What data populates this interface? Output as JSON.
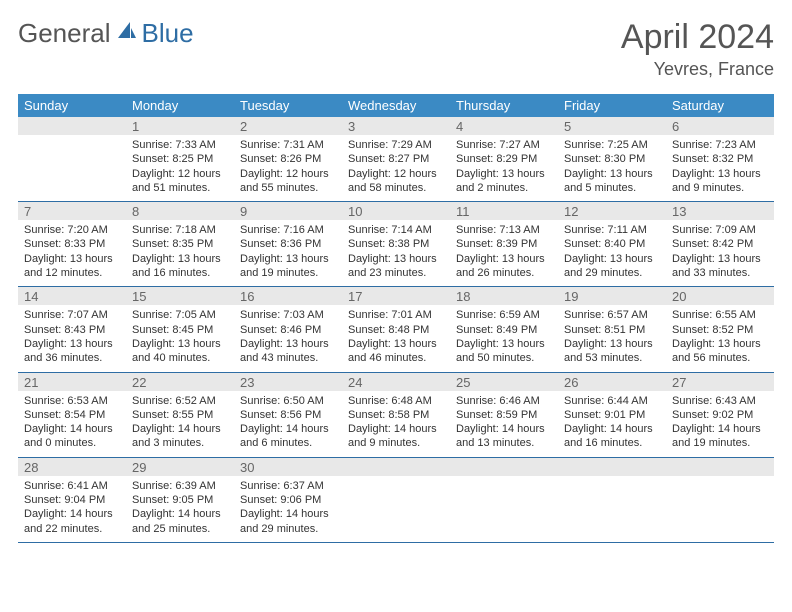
{
  "logo": {
    "word1": "General",
    "word2": "Blue"
  },
  "header": {
    "title": "April 2024",
    "location": "Yevres, France"
  },
  "colors": {
    "header_bg": "#3b8ac4",
    "header_fg": "#ffffff",
    "daynum_bg": "#e8e8e8",
    "daynum_fg": "#666666",
    "cell_border": "#2e6da4",
    "body_text": "#333333",
    "title_text": "#555555",
    "logo_gray": "#555555",
    "logo_blue": "#2e6da4"
  },
  "weekdays": [
    "Sunday",
    "Monday",
    "Tuesday",
    "Wednesday",
    "Thursday",
    "Friday",
    "Saturday"
  ],
  "weeks": [
    [
      null,
      {
        "d": "1",
        "sr": "7:33 AM",
        "ss": "8:25 PM",
        "dl": "12 hours and 51 minutes."
      },
      {
        "d": "2",
        "sr": "7:31 AM",
        "ss": "8:26 PM",
        "dl": "12 hours and 55 minutes."
      },
      {
        "d": "3",
        "sr": "7:29 AM",
        "ss": "8:27 PM",
        "dl": "12 hours and 58 minutes."
      },
      {
        "d": "4",
        "sr": "7:27 AM",
        "ss": "8:29 PM",
        "dl": "13 hours and 2 minutes."
      },
      {
        "d": "5",
        "sr": "7:25 AM",
        "ss": "8:30 PM",
        "dl": "13 hours and 5 minutes."
      },
      {
        "d": "6",
        "sr": "7:23 AM",
        "ss": "8:32 PM",
        "dl": "13 hours and 9 minutes."
      }
    ],
    [
      {
        "d": "7",
        "sr": "7:20 AM",
        "ss": "8:33 PM",
        "dl": "13 hours and 12 minutes."
      },
      {
        "d": "8",
        "sr": "7:18 AM",
        "ss": "8:35 PM",
        "dl": "13 hours and 16 minutes."
      },
      {
        "d": "9",
        "sr": "7:16 AM",
        "ss": "8:36 PM",
        "dl": "13 hours and 19 minutes."
      },
      {
        "d": "10",
        "sr": "7:14 AM",
        "ss": "8:38 PM",
        "dl": "13 hours and 23 minutes."
      },
      {
        "d": "11",
        "sr": "7:13 AM",
        "ss": "8:39 PM",
        "dl": "13 hours and 26 minutes."
      },
      {
        "d": "12",
        "sr": "7:11 AM",
        "ss": "8:40 PM",
        "dl": "13 hours and 29 minutes."
      },
      {
        "d": "13",
        "sr": "7:09 AM",
        "ss": "8:42 PM",
        "dl": "13 hours and 33 minutes."
      }
    ],
    [
      {
        "d": "14",
        "sr": "7:07 AM",
        "ss": "8:43 PM",
        "dl": "13 hours and 36 minutes."
      },
      {
        "d": "15",
        "sr": "7:05 AM",
        "ss": "8:45 PM",
        "dl": "13 hours and 40 minutes."
      },
      {
        "d": "16",
        "sr": "7:03 AM",
        "ss": "8:46 PM",
        "dl": "13 hours and 43 minutes."
      },
      {
        "d": "17",
        "sr": "7:01 AM",
        "ss": "8:48 PM",
        "dl": "13 hours and 46 minutes."
      },
      {
        "d": "18",
        "sr": "6:59 AM",
        "ss": "8:49 PM",
        "dl": "13 hours and 50 minutes."
      },
      {
        "d": "19",
        "sr": "6:57 AM",
        "ss": "8:51 PM",
        "dl": "13 hours and 53 minutes."
      },
      {
        "d": "20",
        "sr": "6:55 AM",
        "ss": "8:52 PM",
        "dl": "13 hours and 56 minutes."
      }
    ],
    [
      {
        "d": "21",
        "sr": "6:53 AM",
        "ss": "8:54 PM",
        "dl": "14 hours and 0 minutes."
      },
      {
        "d": "22",
        "sr": "6:52 AM",
        "ss": "8:55 PM",
        "dl": "14 hours and 3 minutes."
      },
      {
        "d": "23",
        "sr": "6:50 AM",
        "ss": "8:56 PM",
        "dl": "14 hours and 6 minutes."
      },
      {
        "d": "24",
        "sr": "6:48 AM",
        "ss": "8:58 PM",
        "dl": "14 hours and 9 minutes."
      },
      {
        "d": "25",
        "sr": "6:46 AM",
        "ss": "8:59 PM",
        "dl": "14 hours and 13 minutes."
      },
      {
        "d": "26",
        "sr": "6:44 AM",
        "ss": "9:01 PM",
        "dl": "14 hours and 16 minutes."
      },
      {
        "d": "27",
        "sr": "6:43 AM",
        "ss": "9:02 PM",
        "dl": "14 hours and 19 minutes."
      }
    ],
    [
      {
        "d": "28",
        "sr": "6:41 AM",
        "ss": "9:04 PM",
        "dl": "14 hours and 22 minutes."
      },
      {
        "d": "29",
        "sr": "6:39 AM",
        "ss": "9:05 PM",
        "dl": "14 hours and 25 minutes."
      },
      {
        "d": "30",
        "sr": "6:37 AM",
        "ss": "9:06 PM",
        "dl": "14 hours and 29 minutes."
      },
      null,
      null,
      null,
      null
    ]
  ],
  "labels": {
    "sunrise": "Sunrise: ",
    "sunset": "Sunset: ",
    "daylight": "Daylight: "
  }
}
